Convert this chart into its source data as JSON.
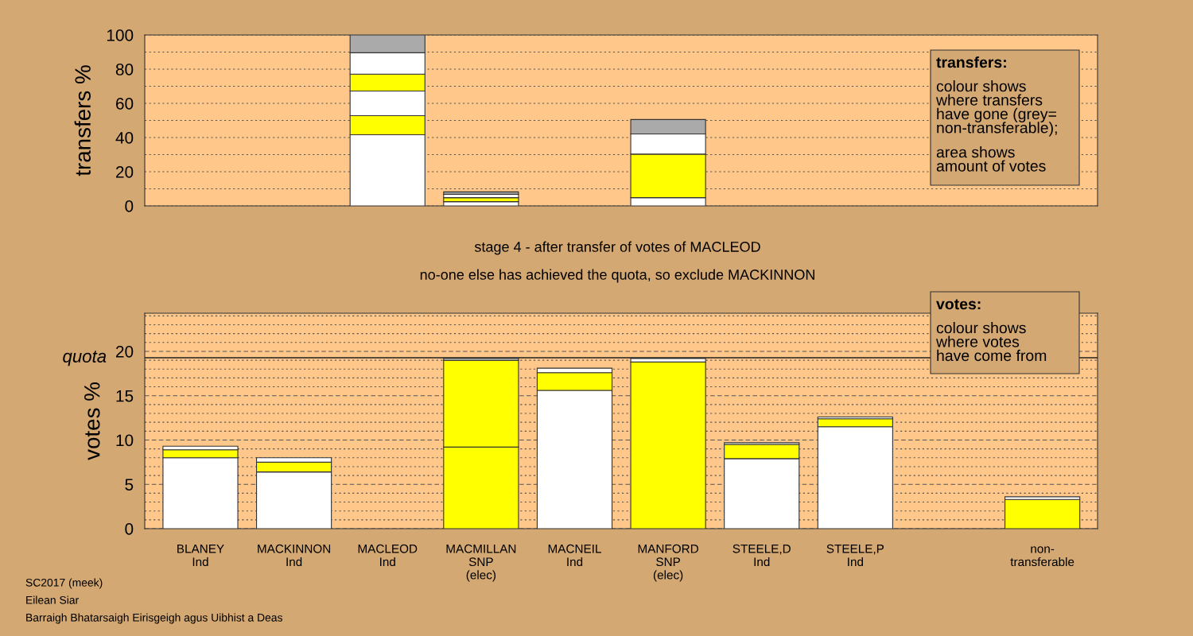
{
  "chart_data": [
    {
      "type": "bar",
      "stacked": true,
      "ylabel": "transfers %",
      "tick_labels": "y",
      "grid": "y",
      "categories": [
        null,
        null,
        null,
        null,
        null,
        null,
        null,
        null,
        null,
        null
      ],
      "ylim": [
        0,
        100
      ],
      "yticks": [
        0,
        {
          "value": 10,
          "label": null
        },
        20,
        {
          "value": 30,
          "label": null
        },
        40,
        {
          "value": 50,
          "label": null
        },
        60,
        {
          "value": 70,
          "label": null
        },
        80,
        {
          "value": 90,
          "label": null
        },
        100
      ],
      "series": [
        {
          "color": "#ffffff",
          "values": [
            null,
            null,
            41.6,
            2.5,
            null,
            4.8,
            null,
            null,
            null,
            null
          ]
        },
        {
          "color": "#ffff00",
          "values": [
            null,
            null,
            11.2,
            2.3,
            null,
            25.5,
            null,
            null,
            null,
            null
          ]
        },
        {
          "color": "#ffffff",
          "values": [
            null,
            null,
            14.4,
            2.0,
            null,
            11.8,
            null,
            null,
            null,
            null
          ]
        },
        {
          "color": "#ffff00",
          "values": [
            null,
            null,
            9.9,
            null,
            null,
            null,
            null,
            null,
            null,
            null
          ]
        },
        {
          "color": "#ffffff",
          "values": [
            null,
            null,
            12.5,
            null,
            null,
            null,
            null,
            null,
            null,
            null
          ]
        },
        {
          "color": "#aaaaaa",
          "values": [
            null,
            null,
            10.4,
            1.4,
            null,
            8.4,
            null,
            null,
            null,
            null
          ]
        }
      ],
      "annotations": [
        "transfers:",
        "colour shows\nwhere transfers\nhave gone (grey=\nnon-transferable);",
        "area shows\namount of votes"
      ]
    },
    {
      "type": "bar",
      "stacked": true,
      "title": "stage 4 - after transfer of votes of MACLEOD",
      "subtitle": "no-one else has achieved the quota, so exclude MACKINNON",
      "ylabel": "votes %",
      "grid": "y",
      "categories": [
        "BLANEY\nInd",
        "MACKINNON\nInd",
        "MACLEOD\nInd",
        "MACMILLAN\nSNP\n(elec)",
        "MACNEIL\nInd",
        "MANFORD\nSNP\n(elec)",
        "STEELE,D\nInd",
        "STEELE,P\nInd",
        null,
        "non-\ntransferable"
      ],
      "ylim": [
        0,
        24.3
      ],
      "yticks": [
        0,
        {
          "value": 1,
          "label": null
        },
        {
          "value": 2,
          "label": null
        },
        {
          "value": 3,
          "label": null
        },
        {
          "value": 4,
          "label": null
        },
        5,
        {
          "value": 6,
          "label": null
        },
        {
          "value": 7,
          "label": null
        },
        {
          "value": 8,
          "label": null
        },
        {
          "value": 9,
          "label": null
        },
        10,
        {
          "value": 11,
          "label": null
        },
        {
          "value": 12,
          "label": null
        },
        {
          "value": 13,
          "label": null
        },
        {
          "value": 14,
          "label": null
        },
        15,
        {
          "value": 16,
          "label": null
        },
        {
          "value": 17,
          "label": null
        },
        {
          "value": 18,
          "label": null
        },
        {
          "value": 19,
          "label": null
        },
        20,
        {
          "value": 21,
          "label": null
        },
        {
          "value": 22,
          "label": null
        },
        {
          "value": 23,
          "label": null
        },
        {
          "value": 24,
          "label": null
        }
      ],
      "series": [
        {
          "colors": [
            "#ffffff",
            "#ffffff",
            "#ffffff",
            "#ffff00",
            "#ffffff",
            "#ffff00",
            "#ffffff",
            "#ffffff",
            "#ffffff",
            "#ffff00"
          ],
          "values": [
            8.0,
            6.4,
            null,
            9.2,
            15.6,
            18.8,
            7.9,
            11.5,
            null,
            3.3
          ]
        },
        {
          "color": "#ffff00",
          "values": [
            0.9,
            1.1,
            null,
            9.8,
            2.0,
            null,
            1.6,
            0.9,
            null,
            null
          ]
        },
        {
          "color": "#ffffff",
          "values": [
            0.4,
            0.5,
            null,
            0.2,
            0.5,
            0.4,
            0.2,
            0.2,
            null,
            0.3
          ]
        }
      ],
      "ref_lines": [
        {
          "axis": "y",
          "value": 19.28,
          "label": "quota"
        }
      ],
      "annotations": [
        "votes:",
        "colour shows\nwhere votes\nhave come from",
        "SC2017 (meek)",
        "Eilean Siar",
        "Barraigh Bhatarsaigh Eirisgeigh agus Uibhist a Deas"
      ]
    }
  ]
}
